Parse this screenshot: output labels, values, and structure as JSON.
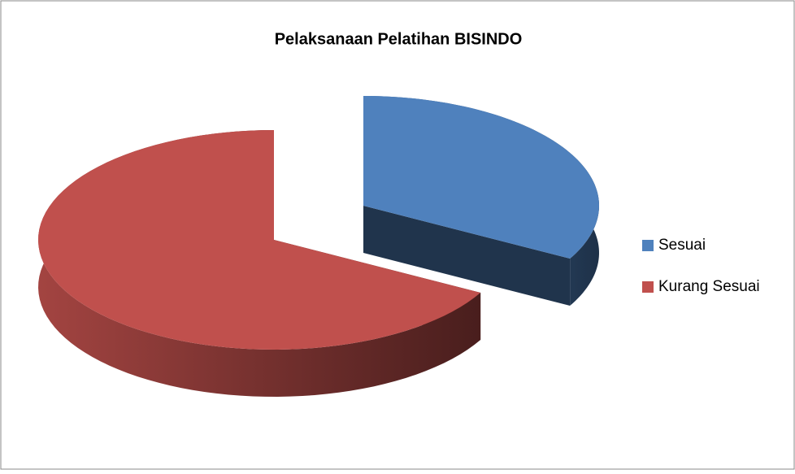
{
  "chart_data": {
    "type": "pie",
    "title": "Pelaksanaan Pelatihan BISINDO",
    "categories": [
      "Sesuai",
      "Kurang Sesuai"
    ],
    "values": [
      33,
      67
    ],
    "colors": [
      "#4f81bd",
      "#c0504d"
    ],
    "legend": "right"
  }
}
